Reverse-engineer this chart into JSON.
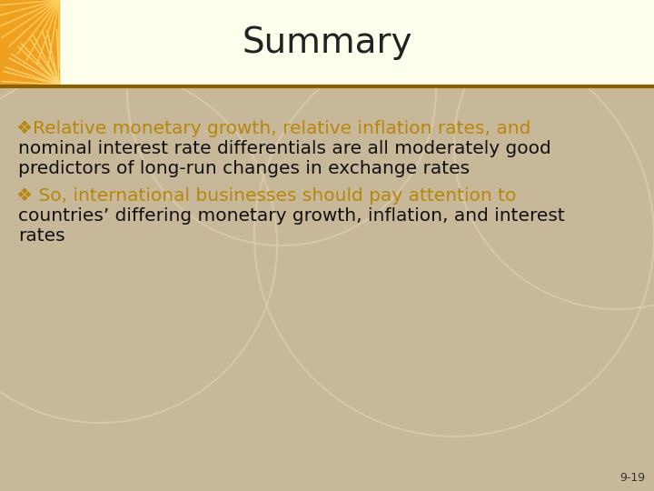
{
  "title": "Summary",
  "title_fontsize": 28,
  "title_color": "#222222",
  "title_bg_color": "#FFFFEE",
  "body_bg_color": "#C8B89A",
  "header_bar_color": "#8B6000",
  "bullet_color": "#B8860B",
  "text_color": "#111111",
  "slide_number": "9-19",
  "bullet1_line1": "❖Relative monetary growth, relative inflation rates, and",
  "bullet1_line2": "nominal interest rate differentials are all moderately good",
  "bullet1_line3": "predictors of long-run changes in exchange rates",
  "bullet2_line1": "❖ So, international businesses should pay attention to",
  "bullet2_line2": "countries’ differing monetary growth, inflation, and interest",
  "bullet2_line3": "rates",
  "body_text_fontsize": 14.5,
  "circle_color": "#D8C8A8",
  "orange_color": "#F0A020",
  "title_bar_height": 95,
  "orange_bar_width": 65
}
